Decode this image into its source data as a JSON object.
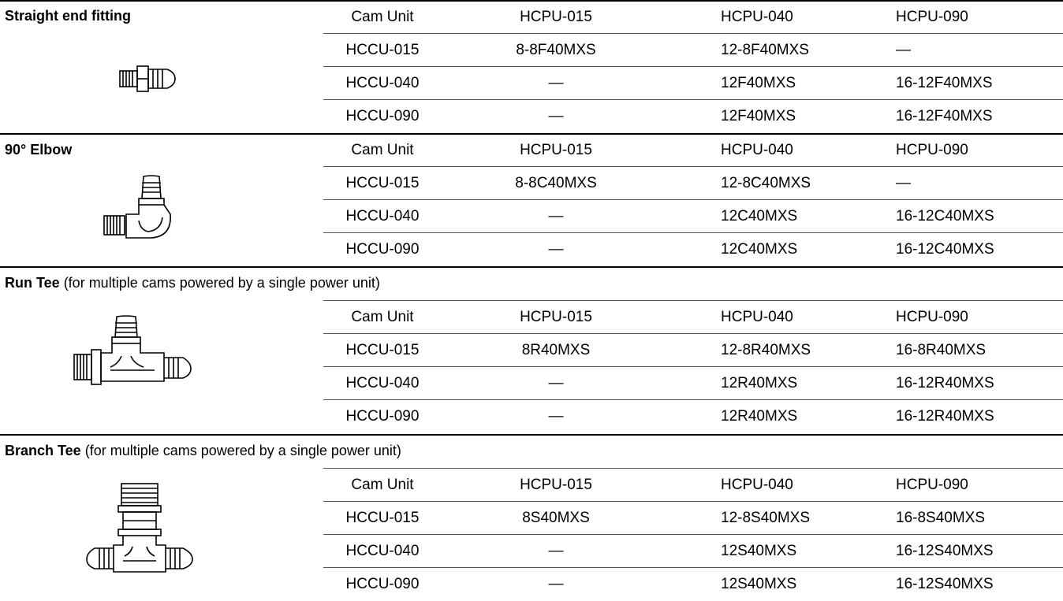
{
  "sections": [
    {
      "title": "Straight end fitting",
      "subtitle": "",
      "icon": "straight-fitting-icon",
      "header": [
        "Cam Unit",
        "HCPU-015",
        "HCPU-040",
        "HCPU-090"
      ],
      "rows": [
        [
          "HCCU-015",
          "8-8F40MXS",
          "12-8F40MXS",
          "—"
        ],
        [
          "HCCU-040",
          "—",
          "12F40MXS",
          "16-12F40MXS"
        ],
        [
          "HCCU-090",
          "—",
          "12F40MXS",
          "16-12F40MXS"
        ]
      ]
    },
    {
      "title": "90° Elbow",
      "subtitle": "",
      "icon": "elbow-fitting-icon",
      "header": [
        "Cam Unit",
        "HCPU-015",
        "HCPU-040",
        "HCPU-090"
      ],
      "rows": [
        [
          "HCCU-015",
          "8-8C40MXS",
          "12-8C40MXS",
          "—"
        ],
        [
          "HCCU-040",
          "—",
          "12C40MXS",
          "16-12C40MXS"
        ],
        [
          "HCCU-090",
          "—",
          "12C40MXS",
          "16-12C40MXS"
        ]
      ]
    },
    {
      "title": "Run Tee",
      "subtitle": "(for multiple cams powered by a single power unit)",
      "icon": "run-tee-icon",
      "header": [
        "Cam Unit",
        "HCPU-015",
        "HCPU-040",
        "HCPU-090"
      ],
      "rows": [
        [
          "HCCU-015",
          "8R40MXS",
          "12-8R40MXS",
          "16-8R40MXS"
        ],
        [
          "HCCU-040",
          "—",
          "12R40MXS",
          "16-12R40MXS"
        ],
        [
          "HCCU-090",
          "—",
          "12R40MXS",
          "16-12R40MXS"
        ]
      ]
    },
    {
      "title": "Branch Tee",
      "subtitle": "(for multiple cams powered by a single power unit)",
      "icon": "branch-tee-icon",
      "header": [
        "Cam Unit",
        "HCPU-015",
        "HCPU-040",
        "HCPU-090"
      ],
      "rows": [
        [
          "HCCU-015",
          "8S40MXS",
          "12-8S40MXS",
          "16-8S40MXS"
        ],
        [
          "HCCU-040",
          "—",
          "12S40MXS",
          "16-12S40MXS"
        ],
        [
          "HCCU-090",
          "—",
          "12S40MXS",
          "16-12S40MXS"
        ]
      ]
    }
  ]
}
